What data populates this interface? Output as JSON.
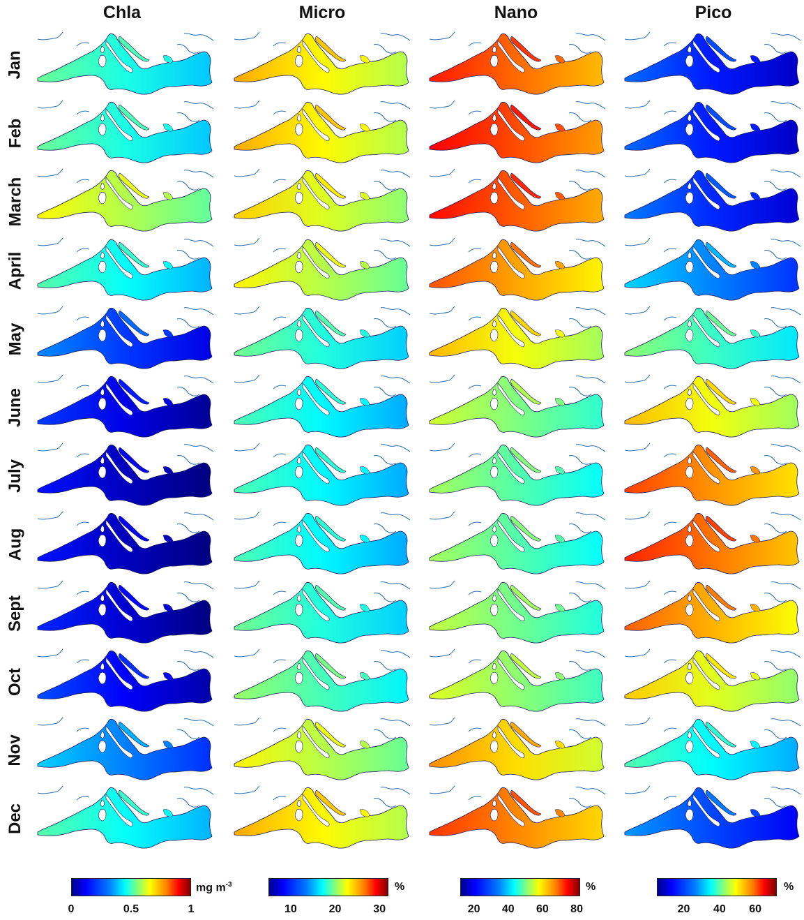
{
  "columns": [
    {
      "title": "Chla",
      "palette": "chla"
    },
    {
      "title": "Micro",
      "palette": "micro"
    },
    {
      "title": "Nano",
      "palette": "nano"
    },
    {
      "title": "Pico",
      "palette": "pico"
    }
  ],
  "months": [
    "Jan",
    "Feb",
    "March",
    "April",
    "May",
    "June",
    "July",
    "Aug",
    "Sept",
    "Oct",
    "Nov",
    "Dec"
  ],
  "map_values": {
    "chla": [
      0.4,
      0.4,
      0.55,
      0.38,
      0.18,
      0.1,
      0.06,
      0.06,
      0.08,
      0.12,
      0.25,
      0.38
    ],
    "micro": [
      22,
      22,
      21,
      20,
      16,
      15,
      15,
      15,
      16,
      17,
      20,
      22
    ],
    "nano": [
      66,
      68,
      67,
      62,
      55,
      47,
      44,
      44,
      46,
      48,
      58,
      64
    ],
    "pico": [
      15,
      15,
      16,
      22,
      34,
      46,
      54,
      56,
      52,
      45,
      30,
      18
    ]
  },
  "colorbars": [
    {
      "unit": "mg m",
      "unit_exp": "-3",
      "range": [
        0,
        1
      ],
      "ticks": [
        {
          "label": "0",
          "value": 0
        },
        {
          "label": "0.5",
          "value": 0.5
        },
        {
          "label": "1",
          "value": 1
        }
      ]
    },
    {
      "unit": "%",
      "unit_exp": "",
      "range": [
        5,
        32
      ],
      "ticks": [
        {
          "label": "10",
          "value": 10
        },
        {
          "label": "20",
          "value": 20
        },
        {
          "label": "30",
          "value": 30
        }
      ]
    },
    {
      "unit": "%",
      "unit_exp": "",
      "range": [
        12,
        82
      ],
      "ticks": [
        {
          "label": "20",
          "value": 20
        },
        {
          "label": "40",
          "value": 40
        },
        {
          "label": "60",
          "value": 60
        },
        {
          "label": "80",
          "value": 80
        }
      ]
    },
    {
      "unit": "%",
      "unit_exp": "",
      "range": [
        5,
        72
      ],
      "ticks": [
        {
          "label": "20",
          "value": 20
        },
        {
          "label": "40",
          "value": 40
        },
        {
          "label": "60",
          "value": 60
        }
      ]
    }
  ],
  "colormap": "jet"
}
